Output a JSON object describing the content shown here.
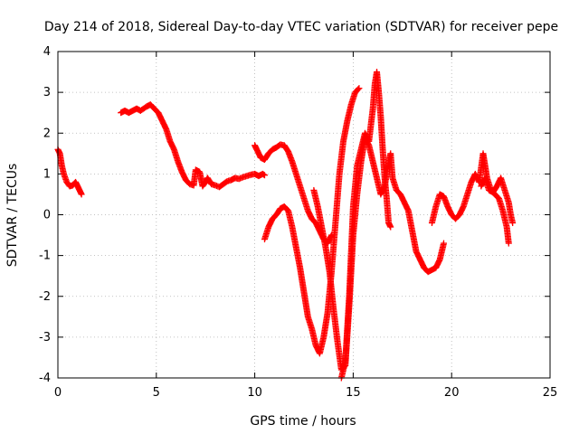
{
  "chart_data": {
    "type": "scatter",
    "title": "Day 214 of 2018, Sidereal Day-to-day VTEC variation (SDTVAR) for receiver pepe",
    "xlabel": "GPS time / hours",
    "ylabel": "SDTVAR / TECUs",
    "xlim": [
      0,
      25
    ],
    "ylim": [
      -4,
      4
    ],
    "xticks": [
      0,
      5,
      10,
      15,
      20,
      25
    ],
    "yticks": [
      -4,
      -3,
      -2,
      -1,
      0,
      1,
      2,
      3,
      4
    ],
    "grid": true,
    "marker": "+",
    "color": "#ff0000",
    "series": [
      {
        "name": "SDTVAR",
        "segments": [
          [
            [
              0.0,
              1.6
            ],
            [
              0.1,
              1.5
            ],
            [
              0.2,
              1.2
            ],
            [
              0.3,
              1.0
            ],
            [
              0.45,
              0.8
            ],
            [
              0.6,
              0.7
            ],
            [
              0.75,
              0.72
            ],
            [
              0.9,
              0.8
            ],
            [
              1.0,
              0.7
            ],
            [
              1.1,
              0.6
            ],
            [
              1.2,
              0.5
            ]
          ],
          [
            [
              3.2,
              2.5
            ],
            [
              3.4,
              2.55
            ],
            [
              3.6,
              2.5
            ],
            [
              3.8,
              2.55
            ],
            [
              4.0,
              2.6
            ],
            [
              4.2,
              2.55
            ],
            [
              4.5,
              2.65
            ],
            [
              4.7,
              2.7
            ],
            [
              4.9,
              2.6
            ],
            [
              5.1,
              2.5
            ],
            [
              5.3,
              2.3
            ],
            [
              5.5,
              2.1
            ],
            [
              5.7,
              1.8
            ],
            [
              5.9,
              1.6
            ],
            [
              6.1,
              1.3
            ],
            [
              6.3,
              1.05
            ],
            [
              6.5,
              0.85
            ],
            [
              6.7,
              0.75
            ],
            [
              6.9,
              0.72
            ],
            [
              7.0,
              1.1
            ],
            [
              7.2,
              1.05
            ],
            [
              7.35,
              0.7
            ],
            [
              7.5,
              0.8
            ],
            [
              7.6,
              0.9
            ],
            [
              7.8,
              0.75
            ],
            [
              8.0,
              0.72
            ],
            [
              8.2,
              0.68
            ],
            [
              8.4,
              0.75
            ],
            [
              8.6,
              0.82
            ],
            [
              8.8,
              0.85
            ],
            [
              9.0,
              0.9
            ],
            [
              9.2,
              0.88
            ],
            [
              9.4,
              0.92
            ],
            [
              9.6,
              0.95
            ],
            [
              9.8,
              0.98
            ],
            [
              10.0,
              1.0
            ],
            [
              10.2,
              0.95
            ],
            [
              10.4,
              1.0
            ],
            [
              10.5,
              0.97
            ]
          ],
          [
            [
              10.0,
              1.7
            ],
            [
              10.1,
              1.6
            ],
            [
              10.3,
              1.4
            ],
            [
              10.5,
              1.35
            ],
            [
              10.7,
              1.5
            ],
            [
              10.9,
              1.6
            ],
            [
              11.1,
              1.65
            ],
            [
              11.3,
              1.72
            ],
            [
              11.5,
              1.7
            ],
            [
              11.7,
              1.55
            ],
            [
              11.9,
              1.3
            ],
            [
              12.1,
              1.0
            ],
            [
              12.3,
              0.7
            ],
            [
              12.5,
              0.4
            ],
            [
              12.7,
              0.1
            ],
            [
              12.9,
              -0.1
            ],
            [
              13.1,
              -0.2
            ],
            [
              13.3,
              -0.4
            ],
            [
              13.5,
              -0.6
            ],
            [
              13.7,
              -0.7
            ],
            [
              13.9,
              -0.5
            ]
          ],
          [
            [
              13.0,
              0.6
            ],
            [
              13.2,
              0.2
            ],
            [
              13.4,
              -0.3
            ],
            [
              13.6,
              -0.8
            ],
            [
              13.8,
              -1.4
            ],
            [
              14.0,
              -2.3
            ],
            [
              14.2,
              -3.1
            ],
            [
              14.4,
              -3.8
            ],
            [
              14.6,
              -3.7
            ],
            [
              14.8,
              -2.2
            ],
            [
              15.0,
              -0.5
            ],
            [
              15.2,
              0.5
            ],
            [
              15.4,
              1.3
            ],
            [
              15.6,
              1.9
            ],
            [
              15.8,
              1.7
            ],
            [
              16.0,
              1.3
            ],
            [
              16.2,
              0.9
            ],
            [
              16.4,
              0.5
            ],
            [
              16.6,
              0.7
            ],
            [
              16.8,
              1.3
            ],
            [
              16.9,
              1.5
            ],
            [
              17.0,
              0.9
            ],
            [
              17.2,
              0.6
            ],
            [
              17.4,
              0.5
            ],
            [
              17.6,
              0.3
            ],
            [
              17.8,
              0.1
            ],
            [
              18.0,
              -0.4
            ],
            [
              18.2,
              -0.9
            ],
            [
              18.4,
              -1.1
            ],
            [
              18.6,
              -1.3
            ],
            [
              18.8,
              -1.4
            ],
            [
              19.0,
              -1.35
            ],
            [
              19.2,
              -1.3
            ],
            [
              19.4,
              -1.1
            ],
            [
              19.6,
              -0.7
            ]
          ],
          [
            [
              10.5,
              -0.6
            ],
            [
              10.7,
              -0.3
            ],
            [
              10.9,
              -0.1
            ],
            [
              11.1,
              0.0
            ],
            [
              11.3,
              0.15
            ],
            [
              11.5,
              0.2
            ],
            [
              11.7,
              0.1
            ],
            [
              11.9,
              -0.3
            ],
            [
              12.1,
              -0.8
            ],
            [
              12.3,
              -1.3
            ],
            [
              12.5,
              -1.9
            ],
            [
              12.7,
              -2.5
            ],
            [
              12.9,
              -2.8
            ],
            [
              13.1,
              -3.2
            ],
            [
              13.3,
              -3.4
            ],
            [
              13.5,
              -3.0
            ],
            [
              13.7,
              -2.4
            ],
            [
              13.9,
              -1.4
            ],
            [
              14.1,
              -0.2
            ],
            [
              14.3,
              1.0
            ],
            [
              14.5,
              1.8
            ],
            [
              14.7,
              2.3
            ],
            [
              14.9,
              2.7
            ],
            [
              15.1,
              3.0
            ],
            [
              15.3,
              3.1
            ]
          ],
          [
            [
              14.4,
              -4.0
            ],
            [
              14.6,
              -3.6
            ],
            [
              14.8,
              -2.0
            ],
            [
              15.0,
              0.2
            ],
            [
              15.2,
              1.2
            ],
            [
              15.4,
              1.6
            ],
            [
              15.6,
              2.0
            ],
            [
              15.8,
              1.8
            ],
            [
              16.0,
              2.6
            ],
            [
              16.1,
              3.2
            ],
            [
              16.2,
              3.5
            ],
            [
              16.3,
              3.0
            ],
            [
              16.4,
              2.4
            ],
            [
              16.5,
              1.6
            ],
            [
              16.6,
              0.9
            ],
            [
              16.7,
              0.4
            ],
            [
              16.8,
              -0.2
            ],
            [
              16.9,
              -0.3
            ]
          ],
          [
            [
              19.0,
              -0.2
            ],
            [
              19.2,
              0.2
            ],
            [
              19.4,
              0.5
            ],
            [
              19.6,
              0.45
            ],
            [
              19.8,
              0.2
            ],
            [
              20.0,
              0.0
            ],
            [
              20.2,
              -0.1
            ],
            [
              20.4,
              0.0
            ],
            [
              20.6,
              0.2
            ],
            [
              20.8,
              0.5
            ],
            [
              21.0,
              0.8
            ],
            [
              21.2,
              1.0
            ],
            [
              21.4,
              0.8
            ],
            [
              21.6,
              1.5
            ],
            [
              21.8,
              0.9
            ],
            [
              22.0,
              0.6
            ],
            [
              22.2,
              0.5
            ],
            [
              22.4,
              0.4
            ],
            [
              22.6,
              0.1
            ],
            [
              22.8,
              -0.3
            ],
            [
              22.9,
              -0.7
            ]
          ],
          [
            [
              21.5,
              0.7
            ],
            [
              21.7,
              0.9
            ],
            [
              21.9,
              0.6
            ],
            [
              22.1,
              0.55
            ],
            [
              22.3,
              0.7
            ],
            [
              22.5,
              0.9
            ],
            [
              22.7,
              0.6
            ],
            [
              22.9,
              0.3
            ],
            [
              23.0,
              0.0
            ],
            [
              23.1,
              -0.2
            ]
          ]
        ]
      }
    ]
  }
}
